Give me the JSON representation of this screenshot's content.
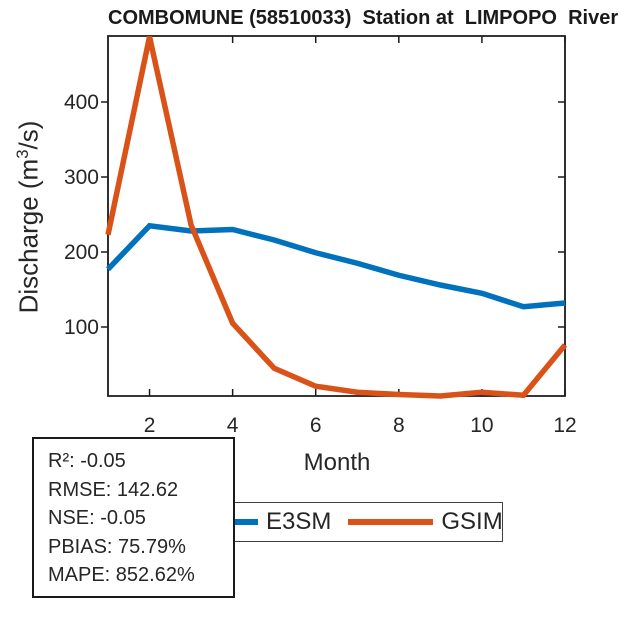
{
  "chart_data": {
    "type": "line",
    "title": "COMBOMUNE (58510033)  Station at  LIMPOPO  River",
    "xlabel": "Month",
    "ylabel": "Discharge (m³/s)",
    "ylabel_parts": {
      "prefix": "Discharge (m",
      "sup": "3",
      "suffix": "/s)"
    },
    "x": [
      1,
      2,
      3,
      4,
      5,
      6,
      7,
      8,
      9,
      10,
      11,
      12
    ],
    "series": [
      {
        "name": "E3SM",
        "color": "#0072BD",
        "values": [
          177,
          235,
          228,
          230,
          216,
          199,
          185,
          169,
          156,
          145,
          127,
          132
        ]
      },
      {
        "name": "GSIM",
        "color": "#D95319",
        "values": [
          223,
          487,
          236,
          105,
          45,
          21,
          13,
          10,
          8,
          13,
          9,
          76
        ]
      }
    ],
    "xlim": [
      1,
      12
    ],
    "ylim": [
      8,
      488
    ],
    "xticks": [
      2,
      4,
      6,
      8,
      10,
      12
    ],
    "yticks": [
      100,
      200,
      300,
      400
    ],
    "grid": false,
    "legend_position": "below-axis"
  },
  "stats_box": {
    "lines": [
      "R²: -0.05",
      "RMSE: 142.62",
      "NSE: -0.05",
      "PBIAS: 75.79%",
      "MAPE: 852.62%"
    ]
  },
  "colors": {
    "e3sm": "#0072BD",
    "gsim": "#D95319",
    "axis": "#1a1a1a",
    "text": "#262626",
    "background": "#ffffff"
  }
}
